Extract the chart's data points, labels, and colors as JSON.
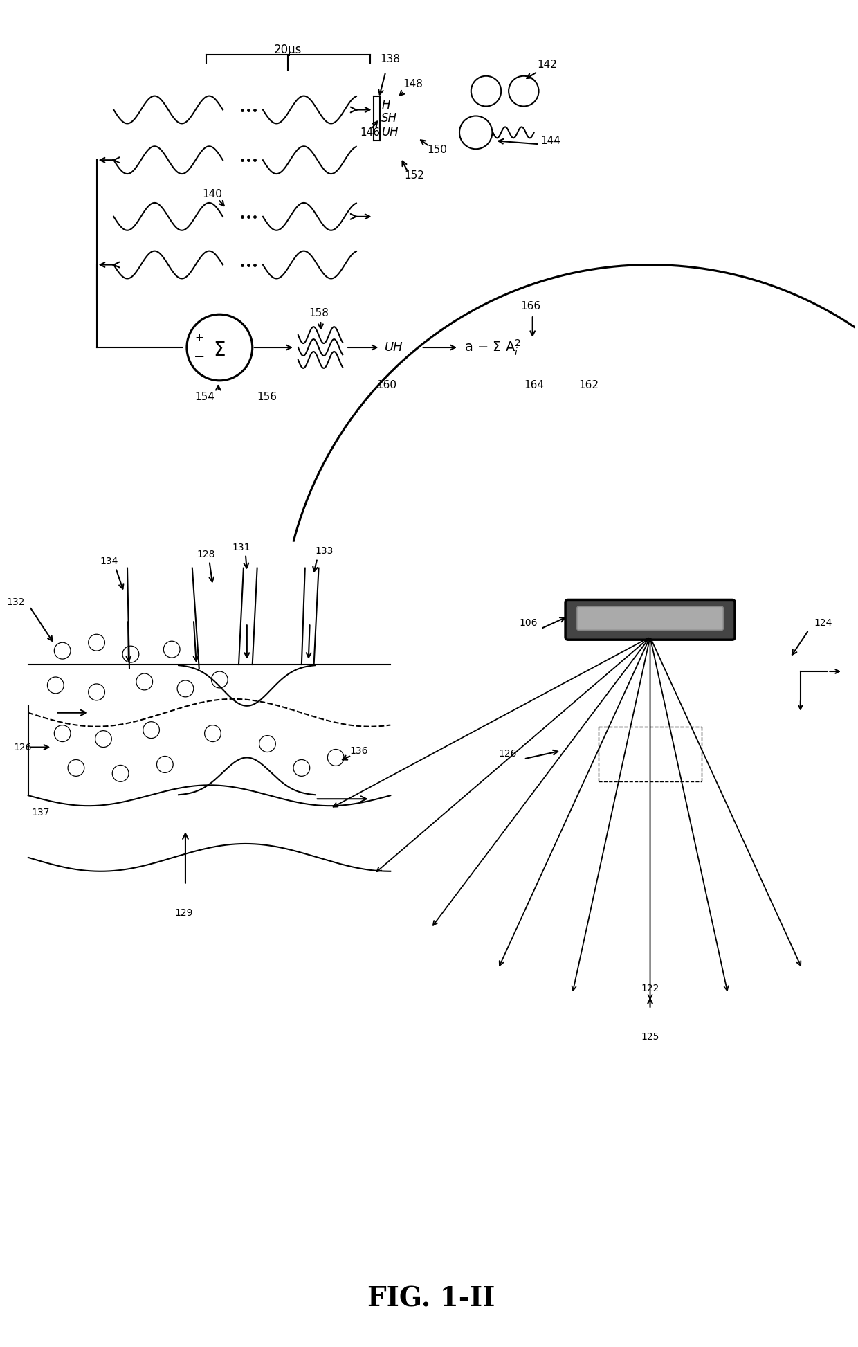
{
  "title": "FIG. 1-II",
  "bg_color": "#ffffff",
  "line_color": "#000000",
  "fig_width": 12.4,
  "fig_height": 19.46,
  "labels": {
    "20us": "20μs",
    "138": "138",
    "146": "146",
    "148": "148",
    "142": "142",
    "144": "144",
    "150": "150",
    "152": "152",
    "140": "140",
    "154": "154",
    "156": "156",
    "158": "158",
    "160": "160",
    "162": "162",
    "164": "164",
    "166": "166",
    "132": "132",
    "134": "134",
    "131": "131",
    "133": "133",
    "128": "128",
    "126": "126",
    "129": "129",
    "137": "137",
    "136": "136",
    "106": "106",
    "124": "124",
    "122": "122",
    "125": "125"
  }
}
